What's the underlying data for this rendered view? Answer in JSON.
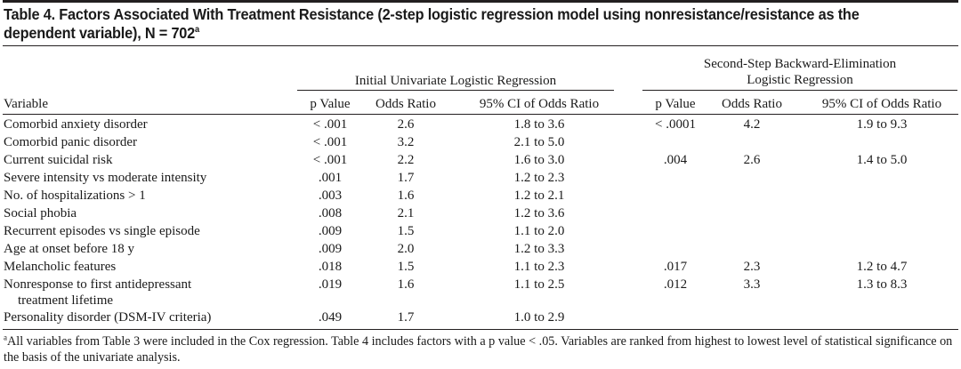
{
  "title": {
    "text": "Table 4. Factors Associated With Treatment Resistance (2-step logistic regression model using nonresistance/resistance as the dependent variable), N = 702",
    "sup": "a"
  },
  "headers": {
    "group1": "Initial Univariate Logistic Regression",
    "group2_line1": "Second-Step Backward-Elimination",
    "group2_line2": "Logistic Regression",
    "variable": "Variable",
    "p_value": "p Value",
    "odds_ratio": "Odds Ratio",
    "ci": "95% CI of Odds Ratio"
  },
  "rows": [
    {
      "variable": "Comorbid anxiety disorder",
      "p1": "< .001",
      "or1": "2.6",
      "ci1": "1.8 to 3.6",
      "p2": "< .0001",
      "or2": "4.2",
      "ci2": "1.9 to 9.3"
    },
    {
      "variable": "Comorbid panic disorder",
      "p1": "< .001",
      "or1": "3.2",
      "ci1": "2.1 to 5.0",
      "p2": "",
      "or2": "",
      "ci2": ""
    },
    {
      "variable": "Current suicidal risk",
      "p1": "< .001",
      "or1": "2.2",
      "ci1": "1.6 to 3.0",
      "p2": ".004",
      "or2": "2.6",
      "ci2": "1.4 to 5.0"
    },
    {
      "variable": "Severe intensity vs moderate intensity",
      "p1": ".001",
      "or1": "1.7",
      "ci1": "1.2 to 2.3",
      "p2": "",
      "or2": "",
      "ci2": ""
    },
    {
      "variable": "No. of hospitalizations > 1",
      "p1": ".003",
      "or1": "1.6",
      "ci1": "1.2 to 2.1",
      "p2": "",
      "or2": "",
      "ci2": ""
    },
    {
      "variable": "Social phobia",
      "p1": ".008",
      "or1": "2.1",
      "ci1": "1.2 to 3.6",
      "p2": "",
      "or2": "",
      "ci2": ""
    },
    {
      "variable": "Recurrent episodes vs single episode",
      "p1": ".009",
      "or1": "1.5",
      "ci1": "1.1 to 2.0",
      "p2": "",
      "or2": "",
      "ci2": ""
    },
    {
      "variable": "Age at onset before 18 y",
      "p1": ".009",
      "or1": "2.0",
      "ci1": "1.2 to 3.3",
      "p2": "",
      "or2": "",
      "ci2": ""
    },
    {
      "variable": "Melancholic features",
      "p1": ".018",
      "or1": "1.5",
      "ci1": "1.1 to 2.3",
      "p2": ".017",
      "or2": "2.3",
      "ci2": "1.2 to 4.7"
    },
    {
      "variable": "Nonresponse to first antidepressant",
      "variable_line2": "treatment lifetime",
      "p1": ".019",
      "or1": "1.6",
      "ci1": "1.1 to 2.5",
      "p2": ".012",
      "or2": "3.3",
      "ci2": "1.3 to 8.3"
    },
    {
      "variable": "Personality disorder (DSM-IV criteria)",
      "p1": ".049",
      "or1": "1.7",
      "ci1": "1.0 to 2.9",
      "p2": "",
      "or2": "",
      "ci2": ""
    }
  ],
  "footnote": {
    "sup": "a",
    "text": "All variables from Table 3 were included in the Cox regression. Table 4 includes factors with a p value < .05. Variables are ranked from highest to lowest level of statistical significance on the basis of the univariate analysis."
  }
}
